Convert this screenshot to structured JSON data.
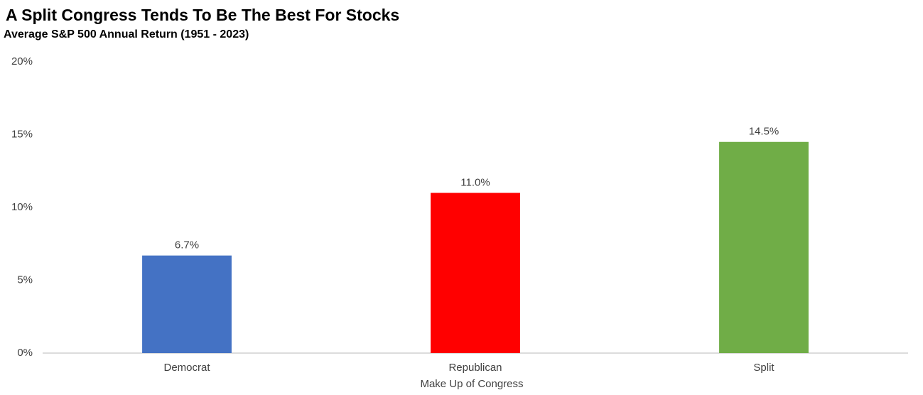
{
  "chart_data": {
    "type": "bar",
    "title": "A Split Congress Tends To Be The Best For Stocks",
    "subtitle": "Average S&P 500 Annual Return (1951 - 2023)",
    "x_label": "Make Up of Congress",
    "categories": [
      "Democrat",
      "Republican",
      "Split"
    ],
    "values": [
      6.7,
      11.0,
      14.5
    ],
    "value_labels": [
      "6.7%",
      "11.0%",
      "14.5%"
    ],
    "colors": [
      "#4472c4",
      "#ff0000",
      "#70ad47"
    ],
    "ylim": [
      0,
      20
    ],
    "yticks": [
      {
        "value": 0,
        "label": "0%"
      },
      {
        "value": 5,
        "label": "5%"
      },
      {
        "value": 10,
        "label": "10%"
      },
      {
        "value": 15,
        "label": "15%"
      },
      {
        "value": 20,
        "label": "20%"
      }
    ],
    "grid": false
  }
}
